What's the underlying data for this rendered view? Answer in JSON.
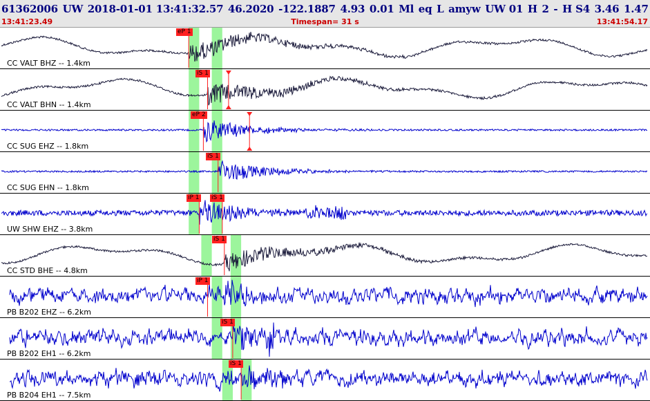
{
  "header": {
    "event_id": "61362006",
    "network": "UW",
    "datetime": "2018-01-01 13:41:32.57",
    "latitude": "46.2020",
    "longitude": "-122.1887",
    "depth": "4.93",
    "magnitude": "0.01",
    "magnitude_type": "Ml",
    "event_type": "eq",
    "location_flag": "L",
    "author": "amyw",
    "source": "UW 01",
    "quality_h": "H",
    "quality_num": "2",
    "dash": "-",
    "quality_s": "H S4",
    "rms": "3.46",
    "err": "1.47",
    "start_time": "13:41:23.49",
    "timespan": "Timespan=  31 s",
    "end_time": "13:41:54.17"
  },
  "colors": {
    "background": "#ffffff",
    "header_bg": "#e6e6e6",
    "header_text": "#000080",
    "time_text": "#cc0000",
    "pick_red": "#ff2020",
    "window_green": "#9cf59c",
    "trace_blue": "#0000cc",
    "trace_black": "#1a1a3a"
  },
  "traces": [
    {
      "label": "CC VALT BHZ -- 1.4km",
      "color": "#1a1a3a",
      "style": "lowfreq",
      "picks": [
        {
          "label": "eP 1",
          "t": 9.0
        }
      ],
      "windows": [
        [
          9.0,
          9.5
        ],
        [
          10.1,
          10.6
        ]
      ]
    },
    {
      "label": "CC VALT BHN -- 1.4km",
      "color": "#1a1a3a",
      "style": "lowfreq",
      "picks": [
        {
          "label": "iS 1",
          "t": 9.9
        },
        {
          "label": "",
          "t": 10.9
        }
      ],
      "windows": [
        [
          9.0,
          9.5
        ],
        [
          10.1,
          10.6
        ]
      ]
    },
    {
      "label": "CC SUG EHZ -- 1.8km",
      "color": "#0000cc",
      "style": "quiet",
      "picks": [
        {
          "label": "eP 2",
          "t": 9.7
        },
        {
          "label": "",
          "t": 11.9
        }
      ],
      "windows": [
        [
          9.0,
          9.5
        ],
        [
          10.1,
          10.6
        ]
      ]
    },
    {
      "label": "CC SUG EHN -- 1.8km",
      "color": "#0000cc",
      "style": "quiet",
      "picks": [
        {
          "label": "iS 1",
          "t": 10.4
        }
      ],
      "windows": [
        [
          9.0,
          9.5
        ],
        [
          10.1,
          10.6
        ]
      ]
    },
    {
      "label": "UW SHW EHZ -- 3.8km",
      "color": "#0000cc",
      "style": "noisy",
      "picks": [
        {
          "label": "iP 1",
          "t": 9.5
        },
        {
          "label": "iS 1",
          "t": 10.6
        }
      ],
      "windows": [
        [
          9.0,
          9.5
        ],
        [
          10.1,
          10.6
        ]
      ]
    },
    {
      "label": "CC STD BHE -- 4.8km",
      "color": "#1a1a3a",
      "style": "lowfreq",
      "picks": [
        {
          "label": "iS 1",
          "t": 10.7
        }
      ],
      "windows": [
        [
          9.6,
          10.1
        ],
        [
          11.0,
          11.5
        ]
      ]
    },
    {
      "label": "PB B202 EHZ -- 6.2km",
      "color": "#0000cc",
      "style": "strongnoise",
      "picks": [
        {
          "label": "iP 1",
          "t": 9.9
        }
      ],
      "windows": [
        [
          10.1,
          10.6
        ],
        [
          11.0,
          11.5
        ]
      ]
    },
    {
      "label": "PB B202 EH1 -- 6.2km",
      "color": "#0000cc",
      "style": "strongnoise",
      "picks": [
        {
          "label": "iS 1",
          "t": 11.1
        }
      ],
      "windows": [
        [
          10.1,
          10.6
        ],
        [
          11.0,
          11.5
        ]
      ]
    },
    {
      "label": "PB B204 EH1 -- 7.5km",
      "color": "#0000cc",
      "style": "strongnoise",
      "picks": [
        {
          "label": "iS 1",
          "t": 11.5
        }
      ],
      "windows": [
        [
          10.6,
          11.1
        ],
        [
          11.5,
          12.0
        ]
      ]
    }
  ]
}
